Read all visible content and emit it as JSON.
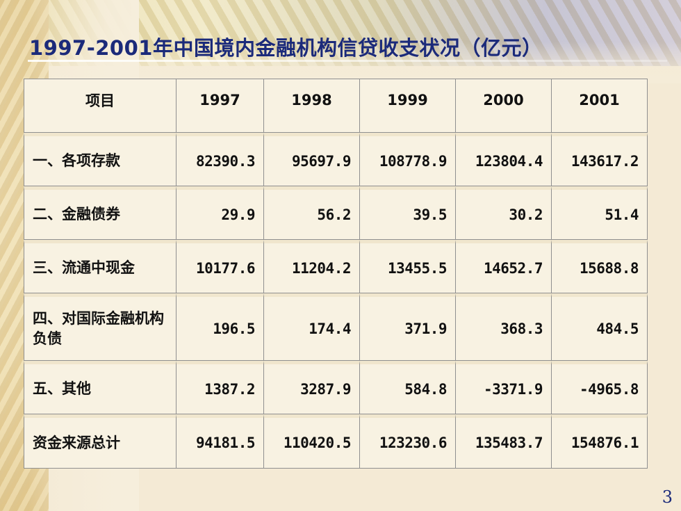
{
  "slide": {
    "title": "1997-2001年中国境内金融机构信贷收支状况（亿元）",
    "page_number": "3"
  },
  "table": {
    "header": [
      "项目",
      "1997",
      "1998",
      "1999",
      "2000",
      "2001"
    ],
    "rows": [
      {
        "label": "一、各项存款",
        "values": [
          "82390.3",
          "95697.9",
          "108778.9",
          "123804.4",
          "143617.2"
        ]
      },
      {
        "label": "二、金融债券",
        "values": [
          "29.9",
          "56.2",
          "39.5",
          "30.2",
          "51.4"
        ]
      },
      {
        "label": "三、流通中现金",
        "values": [
          "10177.6",
          "11204.2",
          "13455.5",
          "14652.7",
          "15688.8"
        ]
      },
      {
        "label": "四、对国际金融机构负债",
        "values": [
          "196.5",
          "174.4",
          "371.9",
          "368.3",
          "484.5"
        ]
      },
      {
        "label": "五、其他",
        "values": [
          "1387.2",
          "3287.9",
          "584.8",
          "-3371.9",
          "-4965.8"
        ]
      },
      {
        "label": "资金来源总计",
        "values": [
          "94181.5",
          "110420.5",
          "123230.6",
          "135483.7",
          "154876.1"
        ]
      }
    ]
  },
  "colors": {
    "title": "#1b2a7a",
    "cell_background": "#f8f2e2",
    "grid": "#8f8f8f"
  }
}
